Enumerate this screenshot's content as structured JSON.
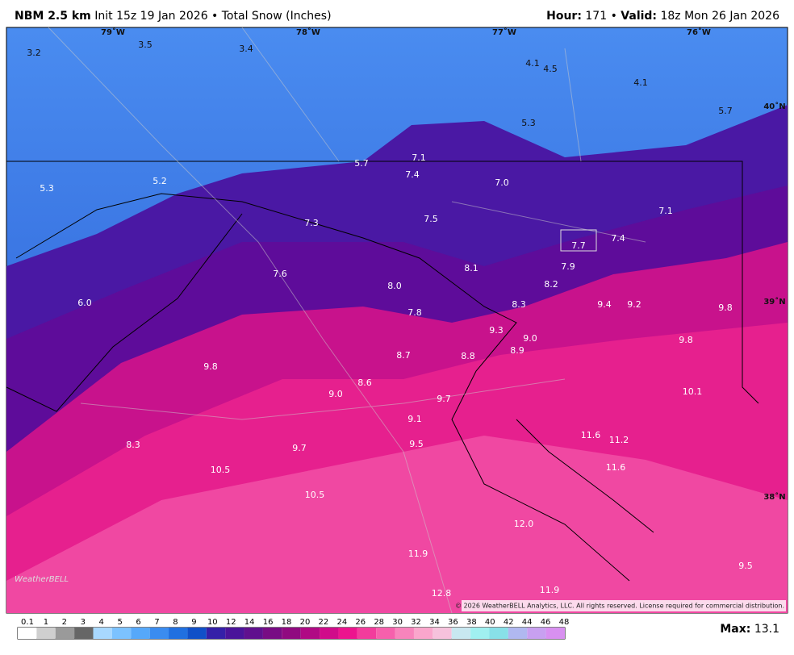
{
  "header": {
    "title": "NBM 2.5 km",
    "subtitle": "Init 15z 19 Jan 2026 • Total Snow (Inches)",
    "hour_label": "Hour:",
    "hour": "171",
    "separator": "•",
    "valid_label": "Valid:",
    "valid": "18z Mon 26 Jan 2026"
  },
  "map": {
    "longitudes": [
      "79˚W",
      "78˚W",
      "77˚W",
      "76˚W"
    ],
    "latitudes": [
      "40˚N",
      "39˚N",
      "38˚N"
    ],
    "points": [
      "3.2",
      "3.5",
      "3.4",
      "4.1",
      "4.5",
      "4.1",
      "5.3",
      "5.7",
      "5.7",
      "7.1",
      "7.4",
      "7.0",
      "5.3",
      "5.2",
      "7.3",
      "7.5",
      "7.1",
      "7.7",
      "7.4",
      "7.6",
      "8.1",
      "7.9",
      "8.0",
      "8.2",
      "6.0",
      "8.3",
      "9.4",
      "9.2",
      "9.8",
      "7.8",
      "9.3",
      "9.0",
      "8.9",
      "9.8",
      "8.7",
      "8.8",
      "9.8",
      "8.6",
      "9.0",
      "10.1",
      "9.7",
      "9.1",
      "11.6",
      "11.2",
      "9.5",
      "8.3",
      "9.7",
      "11.6",
      "10.5",
      "10.5",
      "12.0",
      "11.9",
      "9.5",
      "12.8",
      "11.9"
    ],
    "logo": "WeatherBELL",
    "copyright": "© 2026 WeatherBELL Analytics, LLC. All rights reserved. License required for commercial distribution."
  },
  "colorbar": {
    "labels": [
      "0.1",
      "1",
      "2",
      "3",
      "4",
      "5",
      "6",
      "7",
      "8",
      "9",
      "10",
      "12",
      "14",
      "16",
      "18",
      "20",
      "22",
      "24",
      "26",
      "28",
      "30",
      "32",
      "34",
      "36",
      "38",
      "40",
      "42",
      "44",
      "46",
      "48"
    ],
    "colors": [
      "#ffffff",
      "#cfcfcf",
      "#9a9a9a",
      "#666666",
      "#a8d8ff",
      "#7cc2ff",
      "#56a8fa",
      "#3a8cf0",
      "#2070e0",
      "#1050c8",
      "#3420a8",
      "#4a149a",
      "#60108e",
      "#780c84",
      "#900a80",
      "#b00a84",
      "#d00c8a",
      "#ec148e",
      "#f23c9c",
      "#f660ac",
      "#f884bc",
      "#faa6cc",
      "#f6c2dc",
      "#c8e8f0",
      "#a0f0f0",
      "#88e0e8",
      "#b0b8f0",
      "#c8a0f0",
      "#d890f0"
    ]
  },
  "footer": {
    "max_label": "Max:",
    "max": "13.1"
  }
}
